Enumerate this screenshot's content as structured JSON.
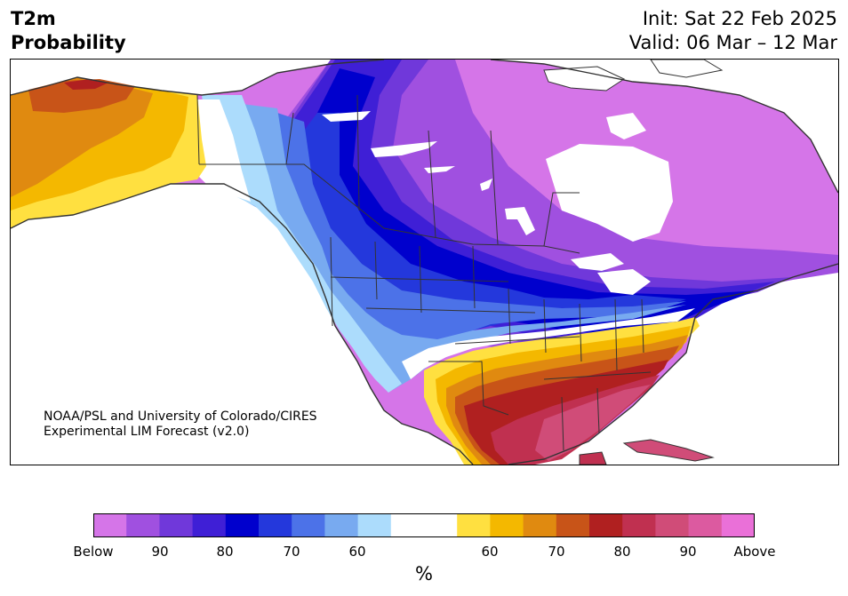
{
  "header": {
    "title_line1": "T2m",
    "title_line2": "Probability",
    "init_text": "Init: Sat 22 Feb 2025",
    "valid_text": "Valid: 06 Mar – 12 Mar"
  },
  "credit": {
    "line1": "NOAA/PSL and University of Colorado/CIRES",
    "line2": "Experimental LIM Forecast (v2.0)"
  },
  "colorbar": {
    "below_colors": [
      "#d575e8",
      "#a050e0",
      "#7038da",
      "#3f1fd6",
      "#0000cd",
      "#2438dc",
      "#4c72e8",
      "#78aaf0",
      "#acdcfc"
    ],
    "neutral_color": "#ffffff",
    "above_colors": [
      "#ffe040",
      "#f4b800",
      "#e08a10",
      "#c85418",
      "#b02020",
      "#c03050",
      "#d04c78",
      "#dc5aa0",
      "#ea70d8"
    ],
    "tick_labels": [
      "Below",
      "90",
      "80",
      "70",
      "60",
      "60",
      "70",
      "80",
      "90",
      "Above"
    ],
    "unit": "%"
  }
}
